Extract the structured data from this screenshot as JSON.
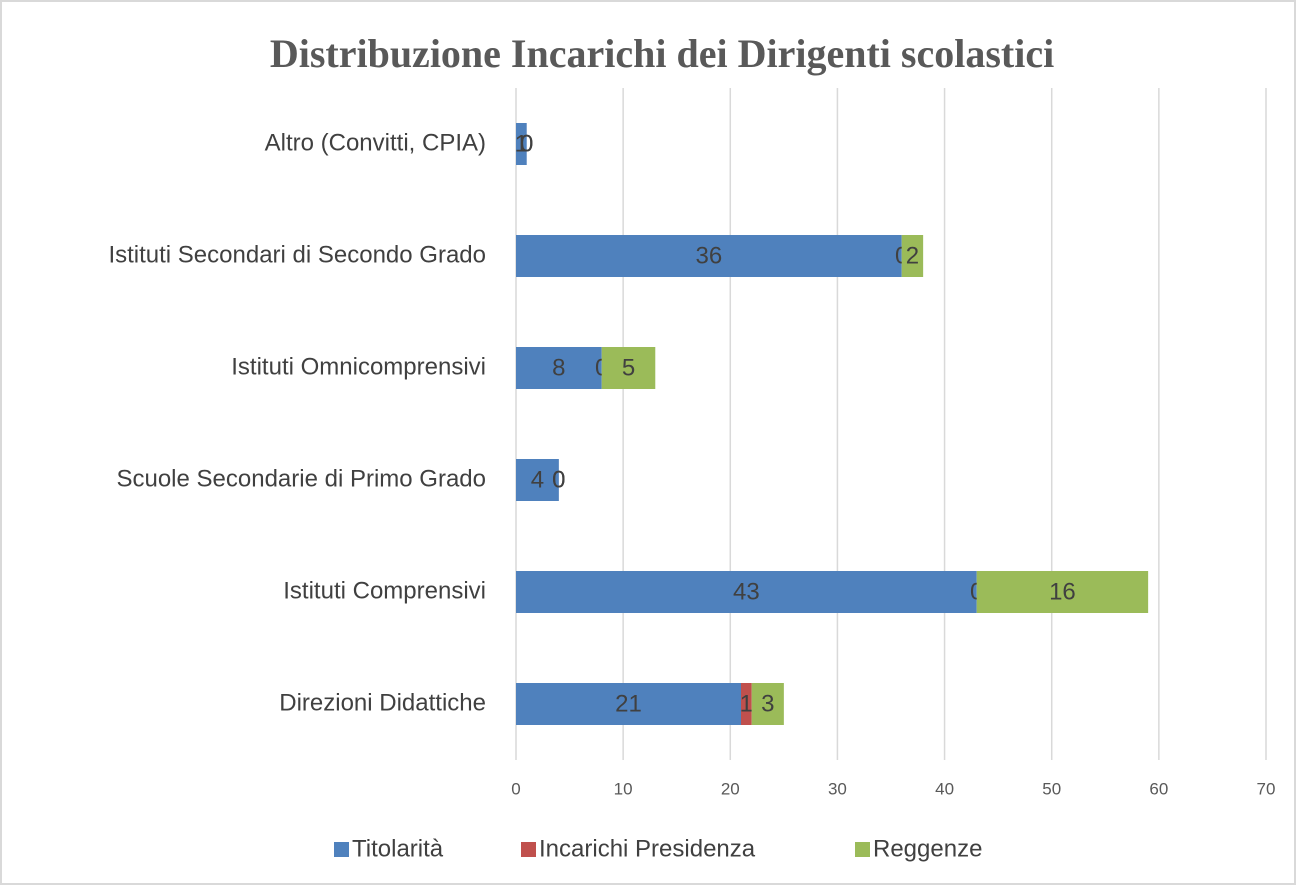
{
  "chart_data": {
    "type": "bar",
    "orientation": "horizontal",
    "stacked": true,
    "title": "Distribuzione Incarichi dei Dirigenti scolastici",
    "categories": [
      "Altro (Convitti, CPIA)",
      "Istituti Secondari di Secondo Grado",
      "Istituti Omnicomprensivi",
      "Scuole Secondarie di Primo Grado",
      "Istituti Comprensivi",
      "Direzioni Didattiche"
    ],
    "series": [
      {
        "name": "Titolarità",
        "color": "#4f81bd",
        "values": [
          1,
          36,
          8,
          4,
          43,
          21
        ]
      },
      {
        "name": "Incarichi Presidenza",
        "color": "#c0504d",
        "values": [
          0,
          0,
          0,
          0,
          0,
          1
        ]
      },
      {
        "name": "Reggenze",
        "color": "#9bbb59",
        "values": [
          0,
          2,
          5,
          0,
          16,
          3
        ]
      }
    ],
    "xlim": [
      0,
      70
    ],
    "xticks": [
      0,
      10,
      20,
      30,
      40,
      50,
      60,
      70
    ],
    "grid": true,
    "legend": "bottom"
  }
}
